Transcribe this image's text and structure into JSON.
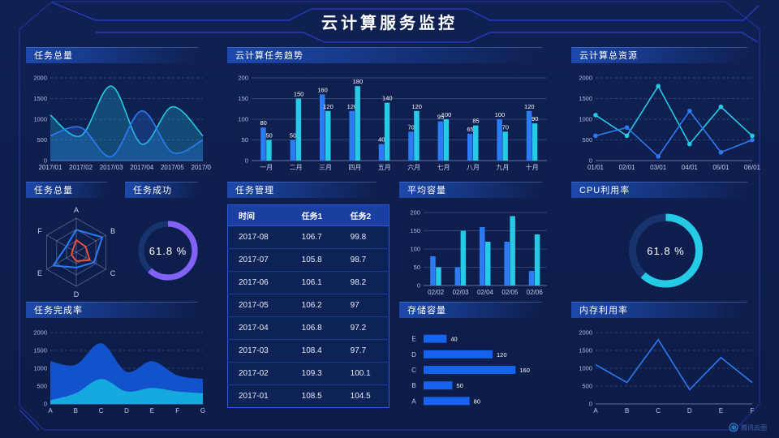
{
  "title": "云计算服务监控",
  "logo": "腾讯云图",
  "colors": {
    "blue": "#2c7bf4",
    "cyan": "#25cbe6",
    "purple": "#8161f6",
    "red": "#e8503a",
    "area_blue": "#1355d4",
    "area_cyan": "#17aee0",
    "hbar_blue": "#1663f0",
    "track": "#17346f"
  },
  "chart_data": [
    {
      "title": "任务总量",
      "type": "area",
      "smooth": true,
      "dashed": true,
      "categories": [
        "2017/01",
        "2017/02",
        "2017/03",
        "2017/04",
        "2017/05",
        "2017/06"
      ],
      "ylim": [
        0,
        2000
      ],
      "yticks": [
        0,
        500,
        1000,
        1500,
        2000
      ],
      "series": [
        {
          "color": "cyan",
          "values": [
            1100,
            600,
            1800,
            400,
            1300,
            600
          ]
        },
        {
          "color": "blue",
          "values": [
            600,
            800,
            100,
            1200,
            200,
            500
          ]
        }
      ]
    },
    {
      "title": "云计算任务趋势",
      "type": "bar",
      "labels": true,
      "categories": [
        "一月",
        "二月",
        "三月",
        "四月",
        "五月",
        "六月",
        "七月",
        "八月",
        "九月",
        "十月"
      ],
      "ylim": [
        0,
        200
      ],
      "yticks": [
        0,
        50,
        100,
        150,
        200
      ],
      "series": [
        {
          "color": "blue",
          "values": [
            80,
            50,
            160,
            120,
            40,
            70,
            95,
            65,
            100,
            120
          ]
        },
        {
          "color": "cyan",
          "values": [
            50,
            150,
            120,
            180,
            140,
            120,
            100,
            85,
            70,
            90
          ]
        }
      ]
    },
    {
      "title": "云计算总资源",
      "type": "line",
      "markers": true,
      "dashed": true,
      "categories": [
        "01/01",
        "02/01",
        "03/01",
        "04/01",
        "05/01",
        "06/01"
      ],
      "ylim": [
        0,
        2000
      ],
      "yticks": [
        0,
        500,
        1000,
        1500,
        2000
      ],
      "series": [
        {
          "color": "cyan",
          "values": [
            1100,
            600,
            1800,
            400,
            1300,
            600
          ]
        },
        {
          "color": "blue",
          "values": [
            600,
            800,
            100,
            1200,
            200,
            500
          ]
        }
      ]
    },
    {
      "title": "任务总量",
      "type": "radar",
      "axes": [
        "A",
        "B",
        "C",
        "D",
        "E",
        "F"
      ],
      "max": 100,
      "series": [
        {
          "color": "blue",
          "values": [
            66,
            88,
            60,
            45,
            78,
            34
          ]
        },
        {
          "color": "red",
          "values": [
            36,
            32,
            46,
            26,
            16,
            12
          ]
        }
      ]
    },
    {
      "title": "任务成功",
      "type": "gauge",
      "value": "61.8 %",
      "percent": 61.8,
      "color": "purple"
    },
    {
      "title": "任务管理",
      "type": "table",
      "headers": [
        "时间",
        "任务1",
        "任务2"
      ],
      "rows": [
        [
          "2017-08",
          "106.7",
          "99.8"
        ],
        [
          "2017-07",
          "105.8",
          "98.7"
        ],
        [
          "2017-06",
          "106.1",
          "98.2"
        ],
        [
          "2017-05",
          "106.2",
          "97"
        ],
        [
          "2017-04",
          "106.8",
          "97.2"
        ],
        [
          "2017-03",
          "108.4",
          "97.7"
        ],
        [
          "2017-02",
          "109.3",
          "100.1"
        ],
        [
          "2017-01",
          "108.5",
          "104.5"
        ]
      ]
    },
    {
      "title": "平均容量",
      "type": "bar",
      "labels": false,
      "categories": [
        "02/02",
        "02/03",
        "02/04",
        "02/05",
        "02/06"
      ],
      "ylim": [
        0,
        200
      ],
      "yticks": [
        0,
        50,
        100,
        150,
        200
      ],
      "series": [
        {
          "color": "blue",
          "values": [
            80,
            50,
            160,
            120,
            40
          ]
        },
        {
          "color": "cyan",
          "values": [
            50,
            150,
            120,
            190,
            140
          ]
        }
      ]
    },
    {
      "title": "CPU利用率",
      "type": "gauge",
      "value": "61.8 %",
      "percent": 61.8,
      "color": "cyan"
    },
    {
      "title": "任务完成率",
      "type": "area",
      "smooth": true,
      "dashed": true,
      "opaque": true,
      "categories": [
        "A",
        "B",
        "C",
        "D",
        "E",
        "F",
        "G"
      ],
      "ylim": [
        0,
        2000
      ],
      "yticks": [
        0,
        500,
        1000,
        1500,
        2000
      ],
      "series": [
        {
          "color": "area_blue",
          "values": [
            1200,
            1100,
            1700,
            900,
            1200,
            800,
            700
          ]
        },
        {
          "color": "area_cyan",
          "values": [
            100,
            300,
            700,
            350,
            450,
            350,
            300
          ]
        }
      ]
    },
    {
      "title": "存储容量",
      "type": "hbar",
      "categories": [
        "A",
        "B",
        "C",
        "D",
        "E"
      ],
      "values": [
        80,
        50,
        160,
        120,
        40
      ],
      "xlim": [
        0,
        175
      ]
    },
    {
      "title": "内存利用率",
      "type": "line",
      "markers": false,
      "dashed": true,
      "categories": [
        "A",
        "B",
        "C",
        "D",
        "E",
        "F"
      ],
      "ylim": [
        0,
        2000
      ],
      "yticks": [
        0,
        500,
        1000,
        1500,
        2000
      ],
      "series": [
        {
          "color": "blue",
          "values": [
            1100,
            600,
            1800,
            400,
            1300,
            600
          ]
        }
      ]
    }
  ]
}
